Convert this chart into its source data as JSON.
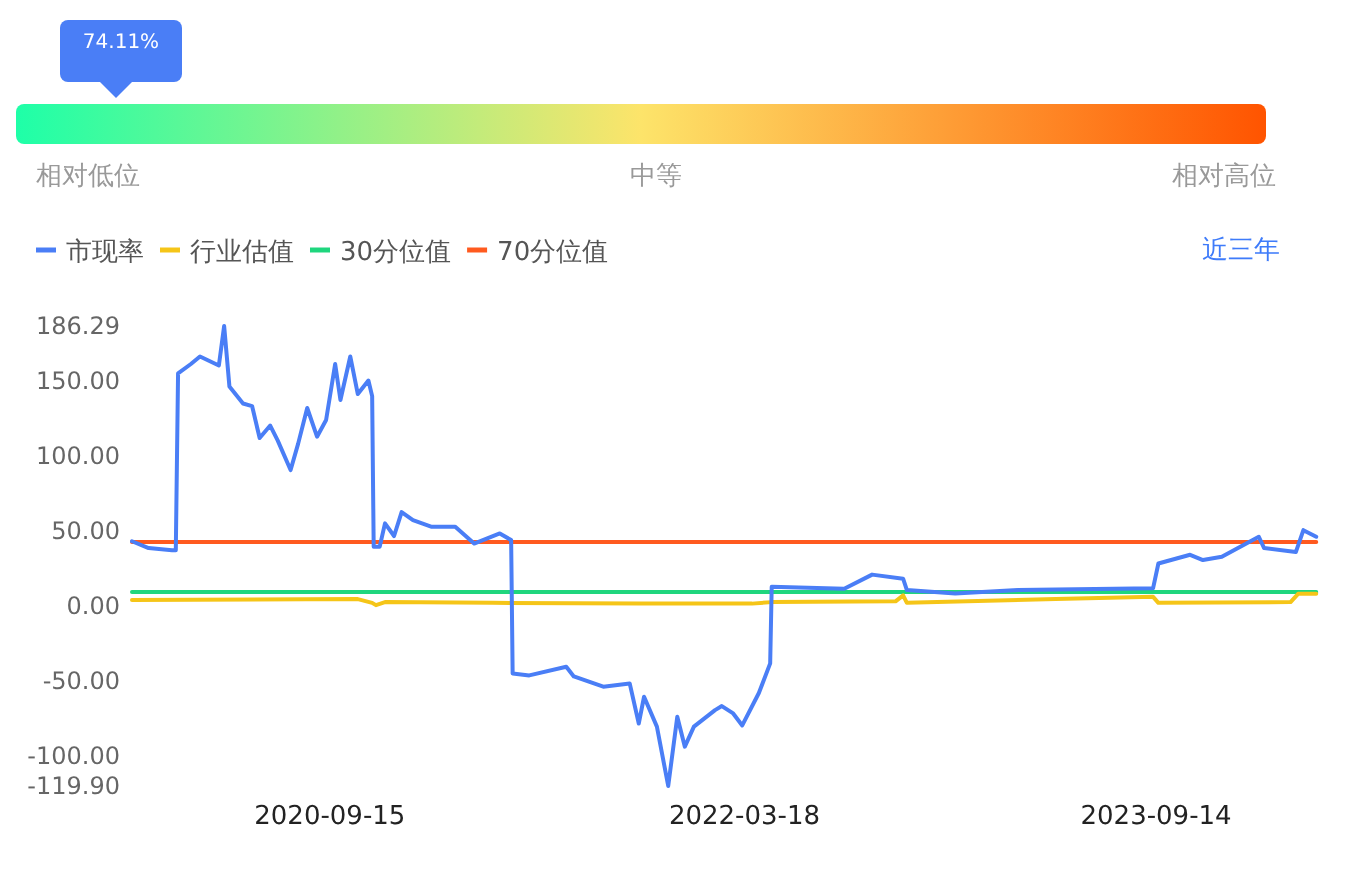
{
  "chart_data": {
    "type": "line",
    "legend": "top left",
    "annotations": [
      "74.11%",
      "相对低位",
      "中等",
      "相对高位",
      "近三年"
    ],
    "xlim": [
      "2019-12-28",
      "2024-04-18"
    ],
    "xticks": [
      "2020-09-15",
      "2022-03-18",
      "2023-09-14"
    ],
    "ylim": [
      -119.9,
      186.29
    ],
    "yticks": [
      {
        "value": 186.29,
        "label": "186.29"
      },
      {
        "value": 150,
        "label": "150.00"
      },
      {
        "value": 100,
        "label": "100.00"
      },
      {
        "value": 50,
        "label": "50.00"
      },
      {
        "value": 0,
        "label": "0.00"
      },
      {
        "value": -50,
        "label": "-50.00"
      },
      {
        "value": -100,
        "label": "-100.00"
      },
      {
        "value": -119.9,
        "label": "-119.90"
      }
    ],
    "series": [
      {
        "name": "市现率",
        "color": "#4a7ef6",
        "x": [
          "2019-12-28",
          "2020-01-19",
          "2020-02-19",
          "2020-02-24",
          "2020-02-27",
          "2020-03-15",
          "2020-03-27",
          "2020-04-21",
          "2020-04-28",
          "2020-05-05",
          "2020-05-23",
          "2020-06-04",
          "2020-06-14",
          "2020-06-28",
          "2020-07-08",
          "2020-07-25",
          "2020-08-04",
          "2020-08-16",
          "2020-08-29",
          "2020-09-10",
          "2020-09-22",
          "2020-09-29",
          "2020-10-12",
          "2020-10-22",
          "2020-11-05",
          "2020-11-10",
          "2020-11-12",
          "2020-11-20",
          "2020-11-27",
          "2020-12-09",
          "2020-12-19",
          "2021-01-03",
          "2021-01-27",
          "2021-02-28",
          "2021-03-25",
          "2021-04-28",
          "2021-05-13",
          "2021-05-15",
          "2021-06-06",
          "2021-07-25",
          "2021-08-04",
          "2021-09-12",
          "2021-10-17",
          "2021-10-29",
          "2021-11-05",
          "2021-11-22",
          "2021-12-07",
          "2021-12-19",
          "2021-12-29",
          "2022-01-10",
          "2022-02-07",
          "2022-02-16",
          "2022-03-03",
          "2022-03-15",
          "2022-04-06",
          "2022-04-21",
          "2022-04-23",
          "2022-07-28",
          "2022-09-03",
          "2022-10-14",
          "2022-10-19",
          "2022-12-22",
          "2023-03-15",
          "2023-09-10",
          "2023-09-17",
          "2023-10-29",
          "2023-11-15",
          "2023-12-10",
          "2024-01-28",
          "2024-02-04",
          "2024-03-17",
          "2024-03-27",
          "2024-04-13"
        ],
        "values": [
          43,
          38.5,
          37,
          37,
          154.7,
          161,
          166,
          160,
          186.29,
          146,
          134.7,
          133,
          111.7,
          120,
          110,
          90.4,
          108,
          131.7,
          112.6,
          123.7,
          161,
          137,
          166,
          141,
          150,
          139.6,
          39.4,
          39.4,
          54.9,
          46.5,
          62.4,
          57,
          52.7,
          52.7,
          41.5,
          48.2,
          43.8,
          -45,
          -46.3,
          -40.5,
          -47,
          -53.8,
          -51.6,
          -78.3,
          -60.5,
          -80.4,
          -119.9,
          -73.8,
          -93.7,
          -80.4,
          -69.4,
          -66.7,
          -71.6,
          -79.6,
          -58,
          -38.3,
          12.7,
          11.4,
          20.8,
          18.1,
          10.5,
          8.3,
          10.5,
          11.8,
          28.2,
          34,
          30.5,
          32.7,
          46,
          38.5,
          35.8,
          50.4,
          46
        ]
      },
      {
        "name": "行业估值",
        "color": "#f5c518",
        "x": [
          "2019-12-28",
          "2020-10-22",
          "2020-11-10",
          "2020-11-15",
          "2020-11-27",
          "2021-04-18",
          "2021-11-01",
          "2022-03-28",
          "2022-04-23",
          "2022-10-04",
          "2022-10-14",
          "2022-10-19",
          "2023-05-04",
          "2023-09-10",
          "2023-09-17",
          "2024-03-10",
          "2024-03-20",
          "2024-04-13"
        ],
        "values": [
          3.9,
          4.5,
          2,
          0.5,
          2.5,
          2,
          1.5,
          1.5,
          2.5,
          3,
          7,
          2,
          4.5,
          6,
          2,
          2.5,
          8,
          8
        ]
      },
      {
        "name": "30分位值",
        "color": "#1fd67e",
        "x": [
          "2019-12-28",
          "2024-04-13"
        ],
        "values": [
          9.2,
          9.2
        ]
      },
      {
        "name": "70分位值",
        "color": "#ff5a1f",
        "x": [
          "2019-12-28",
          "2024-04-13"
        ],
        "values": [
          42.5,
          42.5
        ]
      }
    ]
  }
}
